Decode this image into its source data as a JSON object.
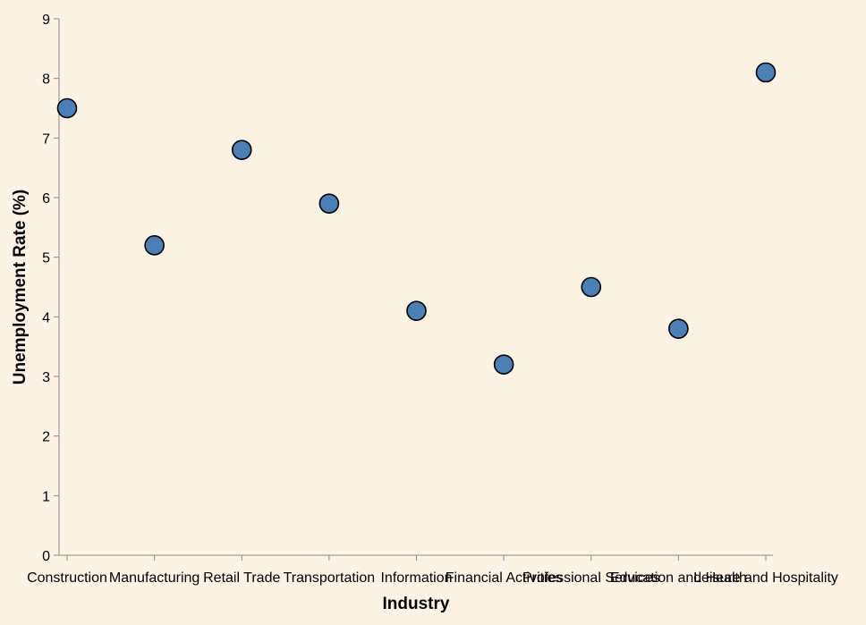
{
  "chart_data": {
    "type": "scatter",
    "title": "",
    "xlabel": "Industry",
    "ylabel": "Unemployment Rate (%)",
    "categories": [
      "Construction",
      "Manufacturing",
      "Retail Trade",
      "Transportation",
      "Information",
      "Financial Activities",
      "Professional Services",
      "Education and Health",
      "Leisure and Hospitality"
    ],
    "values": [
      7.5,
      5.2,
      6.8,
      5.9,
      4.1,
      3.2,
      4.5,
      3.8,
      8.1
    ],
    "ylim": [
      0,
      9
    ],
    "yticks": [
      "0",
      "1",
      "2",
      "3",
      "4",
      "5",
      "6",
      "7",
      "8",
      "9"
    ],
    "grid": false,
    "colors": {
      "background": "#fdf3e4",
      "point_fill": "#4b7fb5",
      "point_stroke": "#000000",
      "axis": "#888888"
    }
  }
}
